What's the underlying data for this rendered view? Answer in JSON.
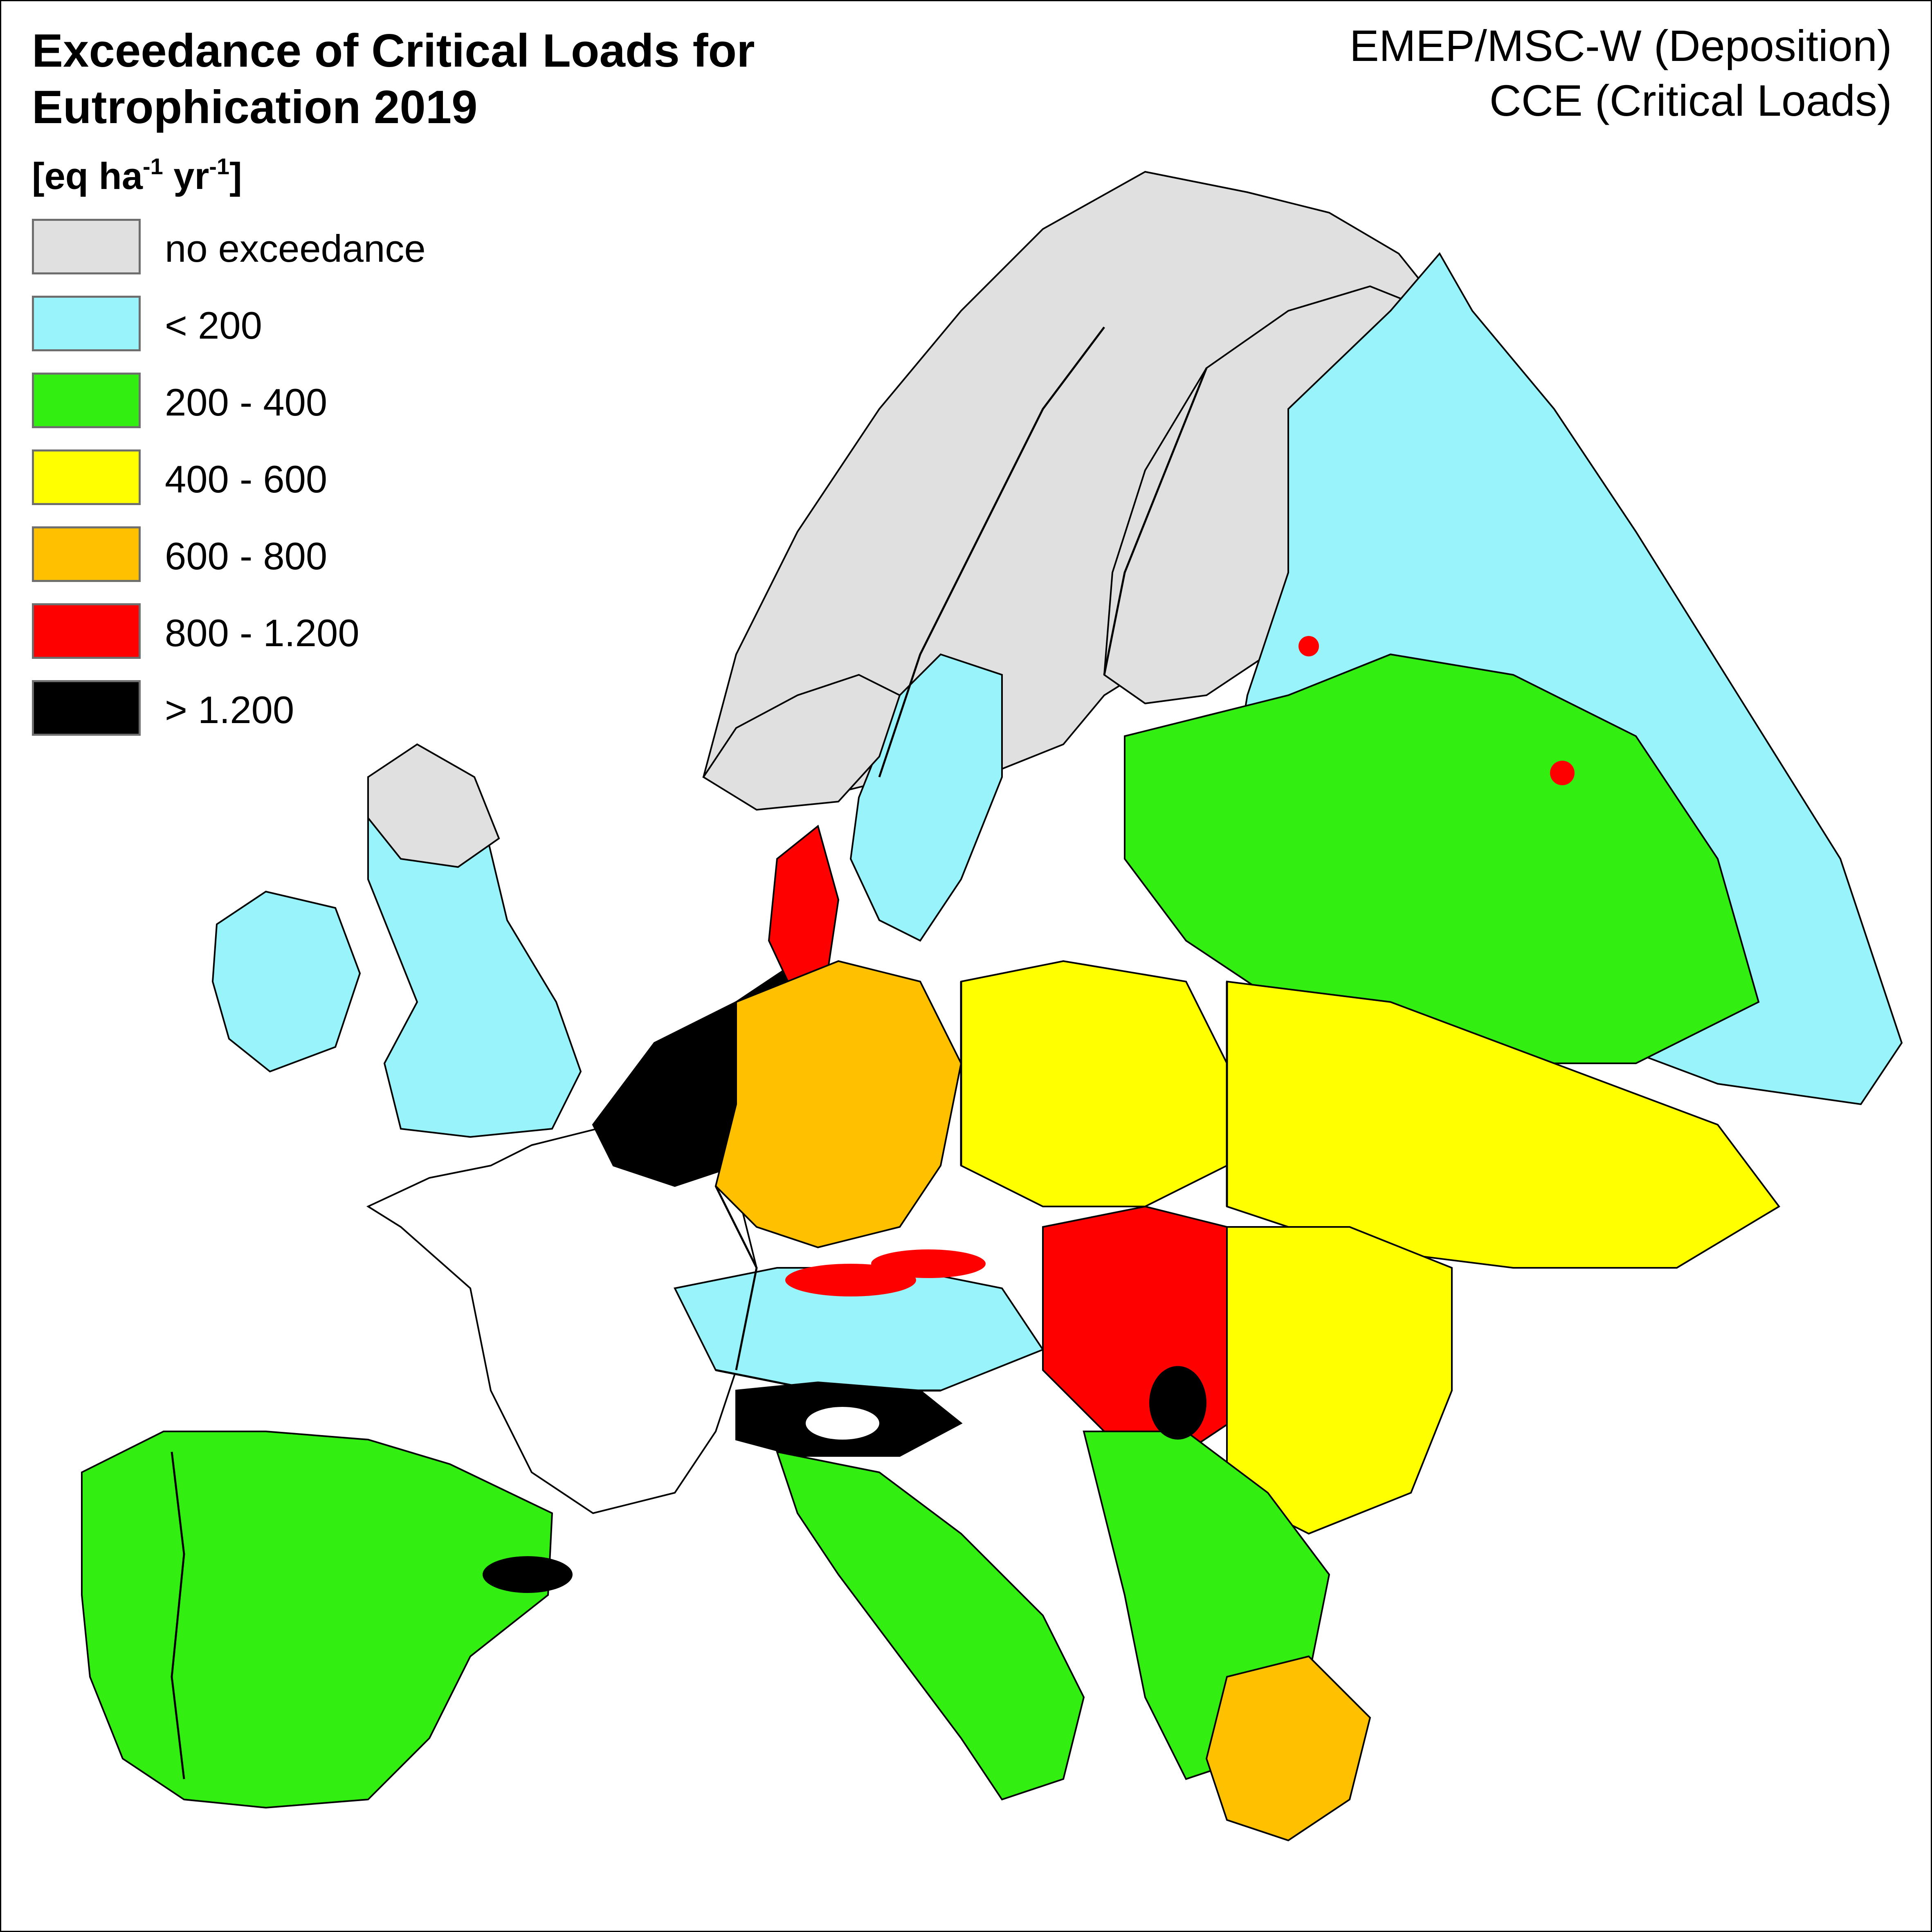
{
  "title_line1": "Exceedance of Critical Loads for",
  "title_line2": "Eutrophication 2019",
  "credit_line1": "EMEP/MSC-W (Deposition)",
  "credit_line2": "CCE (Critical Loads)",
  "unit": {
    "prefix": "[eq ha",
    "exp1": "-1",
    "mid": " yr",
    "exp2": "-1",
    "suffix": "]"
  },
  "legend": [
    {
      "label": "no exceedance",
      "color": "#e0e0e0"
    },
    {
      "label": "< 200",
      "color": "#99f3fb"
    },
    {
      "label": "200 - 400",
      "color": "#33ee11"
    },
    {
      "label": "400 - 600",
      "color": "#ffff00"
    },
    {
      "label": "600 - 800",
      "color": "#ffc000"
    },
    {
      "label": "800 - 1.200",
      "color": "#ff0000"
    },
    {
      "label": "> 1.200",
      "color": "#000000"
    }
  ],
  "palette": {
    "border": "#000000",
    "no_data": "#ffffff"
  }
}
